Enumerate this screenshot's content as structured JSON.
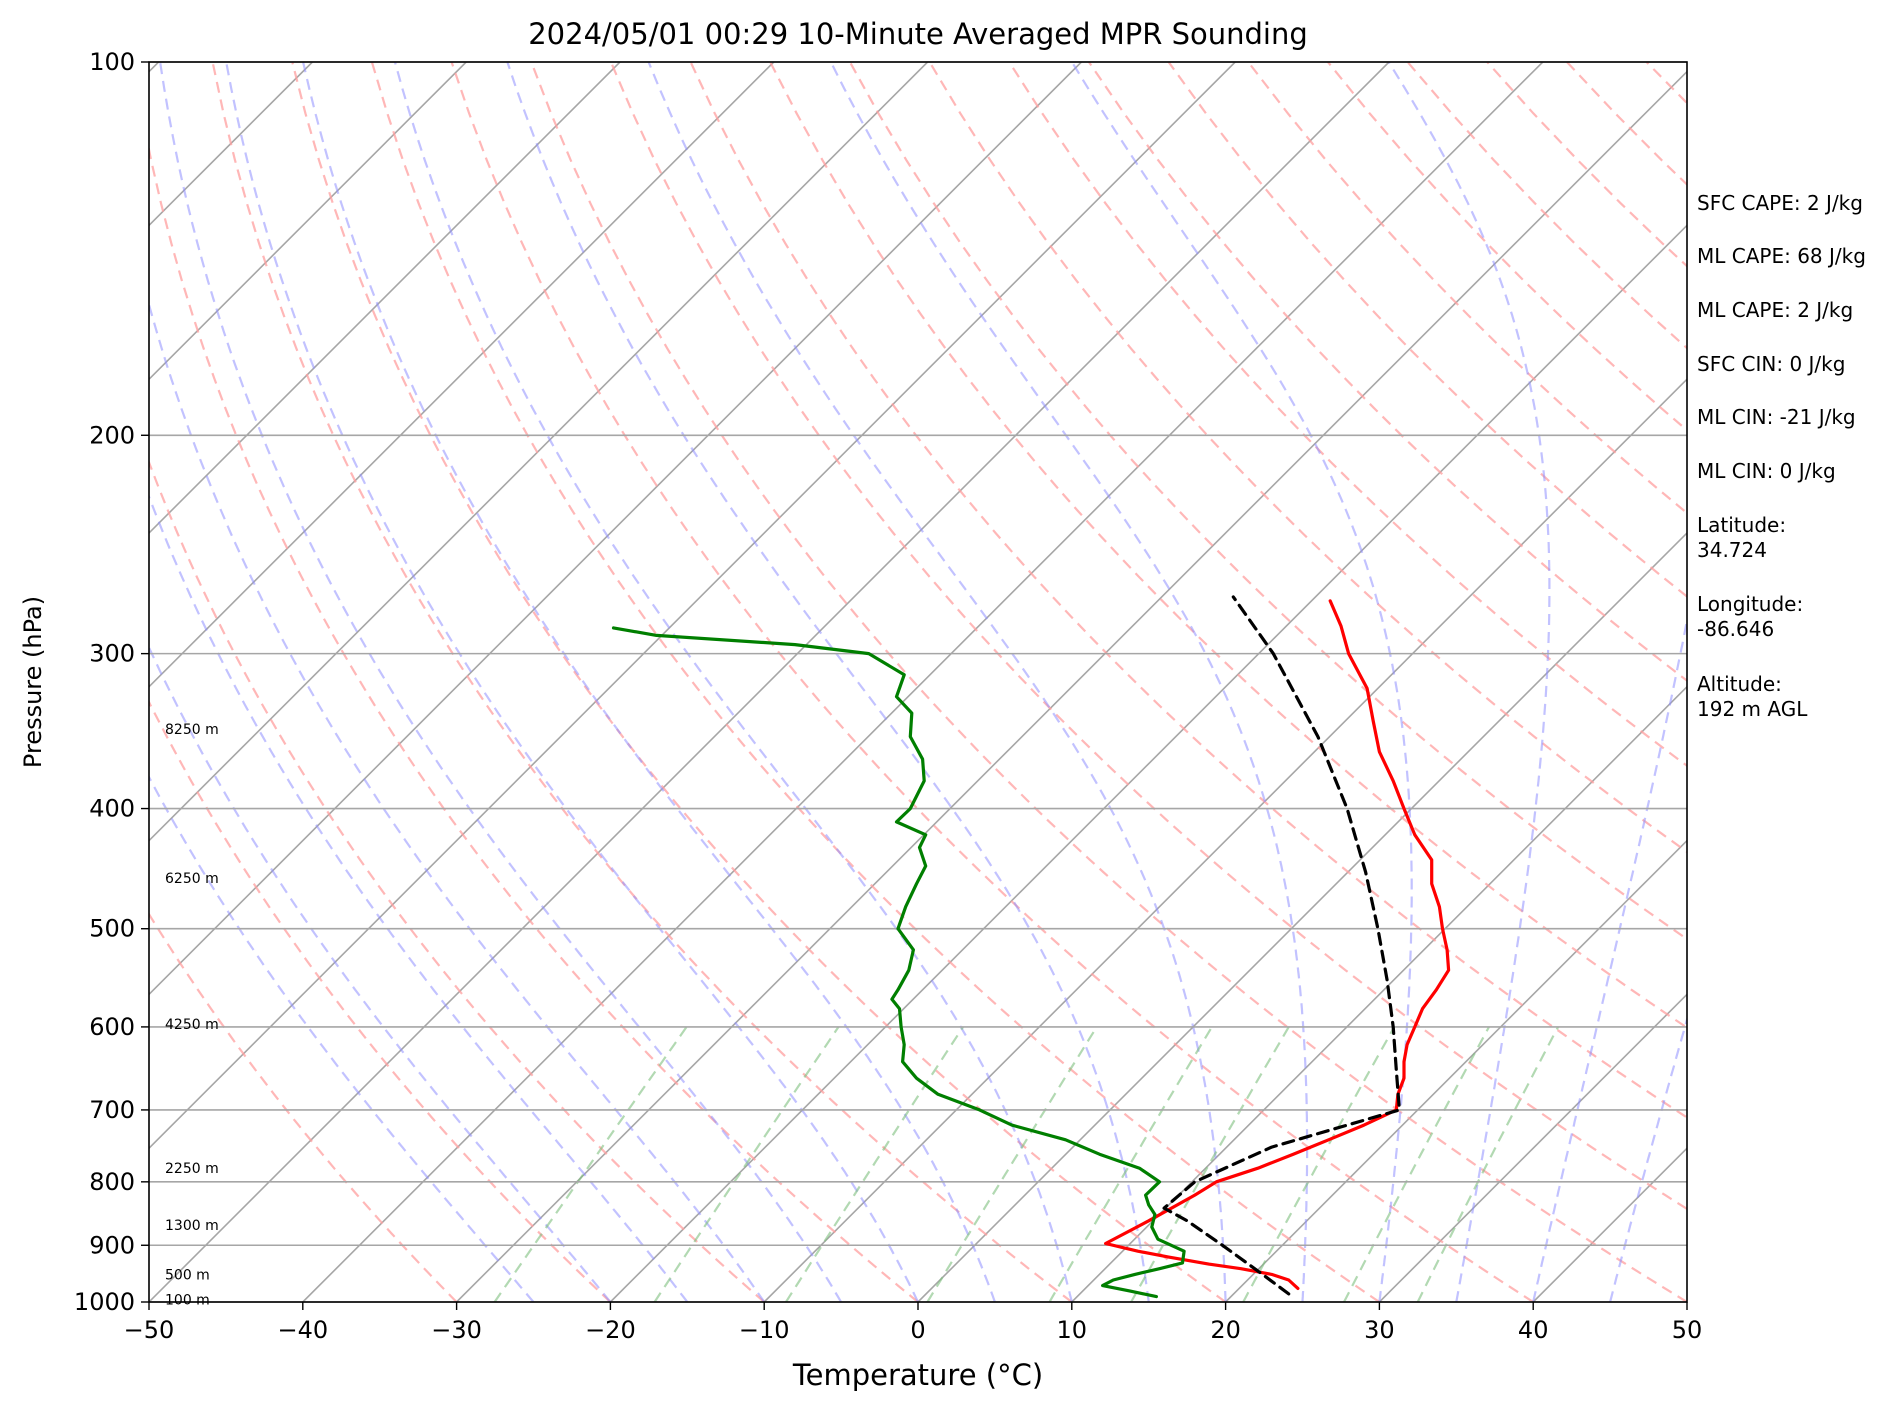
{
  "chart_data": {
    "type": "line",
    "title": "2024/05/01 00:29 10-Minute Averaged MPR Sounding",
    "xlabel": "Temperature (°C)",
    "ylabel": "Pressure (hPa)",
    "xlim": [
      -50,
      50
    ],
    "ylim": [
      1000,
      100
    ],
    "y_scale": "log",
    "skew_t": true,
    "grid": true,
    "x_ticks": [
      -50,
      -40,
      -30,
      -20,
      -10,
      0,
      10,
      20,
      30,
      40,
      50
    ],
    "x_tick_labels": [
      "−50",
      "−40",
      "−30",
      "−20",
      "−10",
      "0",
      "10",
      "20",
      "30",
      "40",
      "50"
    ],
    "y_ticks": [
      1000,
      900,
      800,
      700,
      600,
      500,
      400,
      300,
      200,
      100
    ],
    "y_tick_labels": [
      "1000",
      "900",
      "800",
      "700",
      "600",
      "500",
      "400",
      "300",
      "200",
      "100"
    ],
    "height_labels": [
      {
        "text": "100 m",
        "pressure": 995
      },
      {
        "text": "500 m",
        "pressure": 950
      },
      {
        "text": "1300 m",
        "pressure": 867
      },
      {
        "text": "2250 m",
        "pressure": 780
      },
      {
        "text": "4250 m",
        "pressure": 597
      },
      {
        "text": "6250 m",
        "pressure": 455
      },
      {
        "text": "8250 m",
        "pressure": 345
      }
    ],
    "series": [
      {
        "color": "#ff0000",
        "style": "solid",
        "points": [
          [
            975,
            24.7
          ],
          [
            960,
            24.1
          ],
          [
            950,
            23.0
          ],
          [
            940,
            21.0
          ],
          [
            932,
            18.9
          ],
          [
            920,
            16.3
          ],
          [
            910,
            14.3
          ],
          [
            897,
            12.2
          ],
          [
            860,
            15.0
          ],
          [
            820,
            18.0
          ],
          [
            800,
            19.4
          ],
          [
            780,
            22.1
          ],
          [
            760,
            24.4
          ],
          [
            740,
            26.7
          ],
          [
            720,
            29.0
          ],
          [
            700,
            31.1
          ],
          [
            680,
            31.2
          ],
          [
            660,
            31.6
          ],
          [
            640,
            31.6
          ],
          [
            620,
            31.8
          ],
          [
            600,
            32.3
          ],
          [
            580,
            32.8
          ],
          [
            560,
            33.7
          ],
          [
            540,
            34.5
          ],
          [
            520,
            34.4
          ],
          [
            500,
            34.1
          ],
          [
            480,
            33.9
          ],
          [
            460,
            33.4
          ],
          [
            440,
            33.4
          ],
          [
            420,
            32.3
          ],
          [
            400,
            31.6
          ],
          [
            380,
            30.9
          ],
          [
            360,
            30.0
          ],
          [
            340,
            29.6
          ],
          [
            320,
            29.2
          ],
          [
            300,
            28.0
          ],
          [
            285,
            27.5
          ],
          [
            272,
            26.8
          ]
        ]
      },
      {
        "color": "#007f00",
        "style": "solid",
        "points": [
          [
            990,
            15.5
          ],
          [
            980,
            13.8
          ],
          [
            970,
            12.0
          ],
          [
            960,
            12.7
          ],
          [
            950,
            14.1
          ],
          [
            940,
            15.7
          ],
          [
            930,
            17.2
          ],
          [
            910,
            17.3
          ],
          [
            890,
            15.6
          ],
          [
            870,
            15.2
          ],
          [
            850,
            15.4
          ],
          [
            835,
            15.0
          ],
          [
            820,
            14.8
          ],
          [
            800,
            15.7
          ],
          [
            780,
            14.4
          ],
          [
            760,
            11.8
          ],
          [
            740,
            9.6
          ],
          [
            720,
            6.1
          ],
          [
            700,
            4.0
          ],
          [
            680,
            1.3
          ],
          [
            660,
            -0.1
          ],
          [
            640,
            -1.0
          ],
          [
            620,
            -0.9
          ],
          [
            600,
            -1.1
          ],
          [
            580,
            -1.2
          ],
          [
            570,
            -1.7
          ],
          [
            560,
            -1.3
          ],
          [
            540,
            -0.6
          ],
          [
            520,
            -0.3
          ],
          [
            500,
            -1.3
          ],
          [
            480,
            -0.8
          ],
          [
            460,
            -0.1
          ],
          [
            445,
            0.5
          ],
          [
            430,
            0.1
          ],
          [
            420,
            0.5
          ],
          [
            410,
            -1.4
          ],
          [
            400,
            -0.5
          ],
          [
            380,
            0.4
          ],
          [
            365,
            0.3
          ],
          [
            350,
            -0.5
          ],
          [
            335,
            -0.4
          ],
          [
            325,
            -1.4
          ],
          [
            312,
            -0.9
          ],
          [
            300,
            -3.2
          ],
          [
            295,
            -8.0
          ],
          [
            290,
            -17.0
          ],
          [
            286,
            -19.8
          ]
        ]
      },
      {
        "color": "#000000",
        "style": "dashed",
        "points": [
          [
            985,
            24.1
          ],
          [
            950,
            22.4
          ],
          [
            900,
            19.8
          ],
          [
            860,
            17.5
          ],
          [
            840,
            16.0
          ],
          [
            800,
            18.0
          ],
          [
            750,
            23.0
          ],
          [
            700,
            31.3
          ],
          [
            650,
            31.1
          ],
          [
            600,
            30.9
          ],
          [
            550,
            30.5
          ],
          [
            500,
            29.9
          ],
          [
            450,
            29.1
          ],
          [
            400,
            27.9
          ],
          [
            350,
            26.0
          ],
          [
            300,
            23.1
          ],
          [
            270,
            20.5
          ]
        ]
      }
    ]
  },
  "info": {
    "sfc_cape": "SFC CAPE: 2 J/kg",
    "ml_cape": "ML CAPE: 68 J/kg",
    "ml_cape2": "ML CAPE: 2 J/kg",
    "sfc_cin": "SFC CIN: 0 J/kg",
    "ml_cin": "ML CIN: -21 J/kg",
    "ml_cin2": "ML CIN: 0 J/kg",
    "latitude": "Latitude:\n34.724",
    "longitude": "Longitude:\n-86.646",
    "altitude": "Altitude:\n192 m AGL"
  }
}
